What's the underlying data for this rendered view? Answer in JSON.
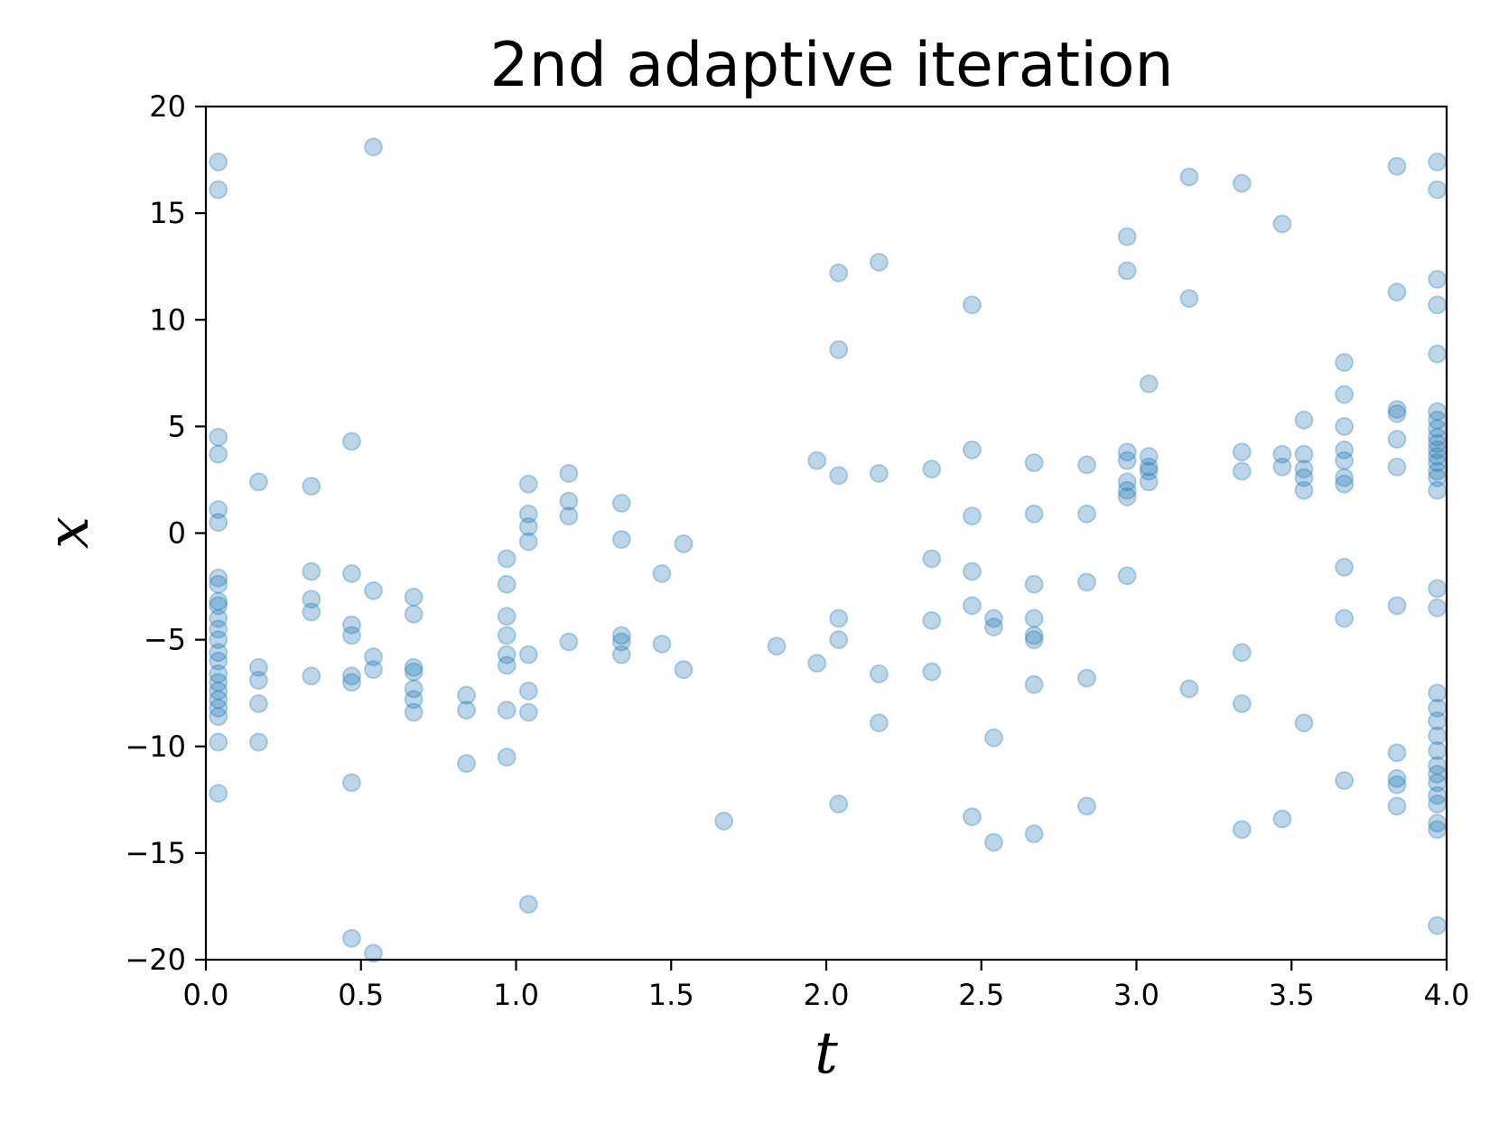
{
  "chart_data": {
    "type": "scatter",
    "title": "2nd adaptive iteration",
    "xlabel": "t",
    "ylabel": "x",
    "xlim": [
      0.0,
      4.0
    ],
    "ylim": [
      -20,
      20
    ],
    "xticks": [
      0.0,
      0.5,
      1.0,
      1.5,
      2.0,
      2.5,
      3.0,
      3.5,
      4.0
    ],
    "xtick_labels": [
      "0.0",
      "0.5",
      "1.0",
      "1.5",
      "2.0",
      "2.5",
      "3.0",
      "3.5",
      "4.0"
    ],
    "yticks": [
      -20,
      -15,
      -10,
      -5,
      0,
      5,
      10,
      15,
      20
    ],
    "ytick_labels": [
      "−20",
      "−15",
      "−10",
      "−5",
      "0",
      "5",
      "10",
      "15",
      "20"
    ],
    "grid": false,
    "marker_color": "#1f77b4",
    "marker_alpha": 0.3,
    "series": [
      {
        "points": [
          [
            0.04,
            17.4
          ],
          [
            0.04,
            16.1
          ],
          [
            0.04,
            4.5
          ],
          [
            0.04,
            3.7
          ],
          [
            0.04,
            1.1
          ],
          [
            0.04,
            0.5
          ],
          [
            0.04,
            -2.1
          ],
          [
            0.04,
            -2.4
          ],
          [
            0.04,
            -3.2
          ],
          [
            0.04,
            -3.4
          ],
          [
            0.04,
            -4.0
          ],
          [
            0.04,
            -4.5
          ],
          [
            0.04,
            -5.0
          ],
          [
            0.04,
            -5.6
          ],
          [
            0.04,
            -6.0
          ],
          [
            0.04,
            -6.6
          ],
          [
            0.04,
            -7.0
          ],
          [
            0.04,
            -7.4
          ],
          [
            0.04,
            -7.8
          ],
          [
            0.04,
            -8.2
          ],
          [
            0.04,
            -8.6
          ],
          [
            0.04,
            -9.8
          ],
          [
            0.04,
            -12.2
          ],
          [
            0.17,
            2.4
          ],
          [
            0.17,
            -6.3
          ],
          [
            0.17,
            -6.9
          ],
          [
            0.17,
            -8.0
          ],
          [
            0.17,
            -9.8
          ],
          [
            0.34,
            2.2
          ],
          [
            0.34,
            -1.8
          ],
          [
            0.34,
            -3.1
          ],
          [
            0.34,
            -3.7
          ],
          [
            0.34,
            -6.7
          ],
          [
            0.47,
            4.3
          ],
          [
            0.47,
            -1.9
          ],
          [
            0.47,
            -4.3
          ],
          [
            0.47,
            -4.8
          ],
          [
            0.47,
            -6.7
          ],
          [
            0.47,
            -7.0
          ],
          [
            0.47,
            -11.7
          ],
          [
            0.47,
            -19.0
          ],
          [
            0.54,
            18.1
          ],
          [
            0.54,
            -2.7
          ],
          [
            0.54,
            -5.8
          ],
          [
            0.54,
            -6.4
          ],
          [
            0.54,
            -19.7
          ],
          [
            0.67,
            -3.0
          ],
          [
            0.67,
            -3.8
          ],
          [
            0.67,
            -6.3
          ],
          [
            0.67,
            -6.5
          ],
          [
            0.67,
            -7.3
          ],
          [
            0.67,
            -7.8
          ],
          [
            0.67,
            -8.4
          ],
          [
            0.84,
            -7.6
          ],
          [
            0.84,
            -8.3
          ],
          [
            0.84,
            -10.8
          ],
          [
            0.97,
            -1.2
          ],
          [
            0.97,
            -2.4
          ],
          [
            0.97,
            -3.9
          ],
          [
            0.97,
            -4.8
          ],
          [
            0.97,
            -5.7
          ],
          [
            0.97,
            -6.2
          ],
          [
            0.97,
            -8.3
          ],
          [
            0.97,
            -10.5
          ],
          [
            1.04,
            2.3
          ],
          [
            1.04,
            0.9
          ],
          [
            1.04,
            0.3
          ],
          [
            1.04,
            -0.4
          ],
          [
            1.04,
            -5.7
          ],
          [
            1.04,
            -7.4
          ],
          [
            1.04,
            -8.4
          ],
          [
            1.04,
            -17.4
          ],
          [
            1.17,
            2.8
          ],
          [
            1.17,
            1.5
          ],
          [
            1.17,
            0.8
          ],
          [
            1.17,
            -5.1
          ],
          [
            1.34,
            1.4
          ],
          [
            1.34,
            -0.3
          ],
          [
            1.34,
            -4.8
          ],
          [
            1.34,
            -5.1
          ],
          [
            1.34,
            -5.7
          ],
          [
            1.47,
            -1.9
          ],
          [
            1.47,
            -5.2
          ],
          [
            1.54,
            -0.5
          ],
          [
            1.54,
            -6.4
          ],
          [
            1.67,
            -13.5
          ],
          [
            1.84,
            -5.3
          ],
          [
            1.97,
            3.4
          ],
          [
            1.97,
            -6.1
          ],
          [
            2.04,
            12.2
          ],
          [
            2.04,
            8.6
          ],
          [
            2.04,
            2.7
          ],
          [
            2.04,
            -4.0
          ],
          [
            2.04,
            -5.0
          ],
          [
            2.04,
            -12.7
          ],
          [
            2.17,
            12.7
          ],
          [
            2.17,
            2.8
          ],
          [
            2.17,
            -6.6
          ],
          [
            2.17,
            -8.9
          ],
          [
            2.34,
            3.0
          ],
          [
            2.34,
            -1.2
          ],
          [
            2.34,
            -4.1
          ],
          [
            2.34,
            -6.5
          ],
          [
            2.47,
            10.7
          ],
          [
            2.47,
            3.9
          ],
          [
            2.47,
            0.8
          ],
          [
            2.47,
            -1.8
          ],
          [
            2.47,
            -3.4
          ],
          [
            2.47,
            -13.3
          ],
          [
            2.54,
            -4.0
          ],
          [
            2.54,
            -4.4
          ],
          [
            2.54,
            -9.6
          ],
          [
            2.54,
            -14.5
          ],
          [
            2.67,
            3.3
          ],
          [
            2.67,
            0.9
          ],
          [
            2.67,
            -2.4
          ],
          [
            2.67,
            -4.0
          ],
          [
            2.67,
            -4.8
          ],
          [
            2.67,
            -5.0
          ],
          [
            2.67,
            -7.1
          ],
          [
            2.67,
            -14.1
          ],
          [
            2.84,
            3.2
          ],
          [
            2.84,
            0.9
          ],
          [
            2.84,
            -2.3
          ],
          [
            2.84,
            -6.8
          ],
          [
            2.84,
            -12.8
          ],
          [
            2.97,
            13.9
          ],
          [
            2.97,
            12.3
          ],
          [
            2.97,
            3.8
          ],
          [
            2.97,
            3.4
          ],
          [
            2.97,
            2.4
          ],
          [
            2.97,
            2.0
          ],
          [
            2.97,
            1.7
          ],
          [
            2.97,
            -2.0
          ],
          [
            3.04,
            7.0
          ],
          [
            3.04,
            3.6
          ],
          [
            3.04,
            3.1
          ],
          [
            3.04,
            2.9
          ],
          [
            3.04,
            2.4
          ],
          [
            3.17,
            16.7
          ],
          [
            3.17,
            11.0
          ],
          [
            3.17,
            -7.3
          ],
          [
            3.34,
            16.4
          ],
          [
            3.34,
            3.8
          ],
          [
            3.34,
            2.9
          ],
          [
            3.34,
            -5.6
          ],
          [
            3.34,
            -8.0
          ],
          [
            3.34,
            -13.9
          ],
          [
            3.47,
            14.5
          ],
          [
            3.47,
            3.7
          ],
          [
            3.47,
            3.1
          ],
          [
            3.47,
            -13.4
          ],
          [
            3.54,
            5.3
          ],
          [
            3.54,
            3.7
          ],
          [
            3.54,
            3.0
          ],
          [
            3.54,
            2.6
          ],
          [
            3.54,
            2.0
          ],
          [
            3.54,
            -8.9
          ],
          [
            3.67,
            8.0
          ],
          [
            3.67,
            6.5
          ],
          [
            3.67,
            5.0
          ],
          [
            3.67,
            3.9
          ],
          [
            3.67,
            3.4
          ],
          [
            3.67,
            2.6
          ],
          [
            3.67,
            2.3
          ],
          [
            3.67,
            -1.6
          ],
          [
            3.67,
            -4.0
          ],
          [
            3.67,
            -11.6
          ],
          [
            3.84,
            17.2
          ],
          [
            3.84,
            11.3
          ],
          [
            3.84,
            5.8
          ],
          [
            3.84,
            5.6
          ],
          [
            3.84,
            4.4
          ],
          [
            3.84,
            3.1
          ],
          [
            3.84,
            -3.4
          ],
          [
            3.84,
            -10.3
          ],
          [
            3.84,
            -11.5
          ],
          [
            3.84,
            -11.8
          ],
          [
            3.84,
            -12.8
          ],
          [
            3.97,
            17.4
          ],
          [
            3.97,
            16.1
          ],
          [
            3.97,
            11.9
          ],
          [
            3.97,
            10.7
          ],
          [
            3.97,
            8.4
          ],
          [
            3.97,
            5.7
          ],
          [
            3.97,
            5.3
          ],
          [
            3.97,
            4.9
          ],
          [
            3.97,
            4.5
          ],
          [
            3.97,
            4.2
          ],
          [
            3.97,
            3.9
          ],
          [
            3.97,
            3.6
          ],
          [
            3.97,
            3.3
          ],
          [
            3.97,
            2.9
          ],
          [
            3.97,
            2.6
          ],
          [
            3.97,
            2.0
          ],
          [
            3.97,
            -2.6
          ],
          [
            3.97,
            -3.5
          ],
          [
            3.97,
            -7.5
          ],
          [
            3.97,
            -8.2
          ],
          [
            3.97,
            -8.8
          ],
          [
            3.97,
            -9.5
          ],
          [
            3.97,
            -10.2
          ],
          [
            3.97,
            -10.9
          ],
          [
            3.97,
            -11.3
          ],
          [
            3.97,
            -11.7
          ],
          [
            3.97,
            -12.3
          ],
          [
            3.97,
            -12.7
          ],
          [
            3.97,
            -13.6
          ],
          [
            3.97,
            -13.9
          ],
          [
            3.97,
            -18.4
          ]
        ]
      }
    ]
  }
}
